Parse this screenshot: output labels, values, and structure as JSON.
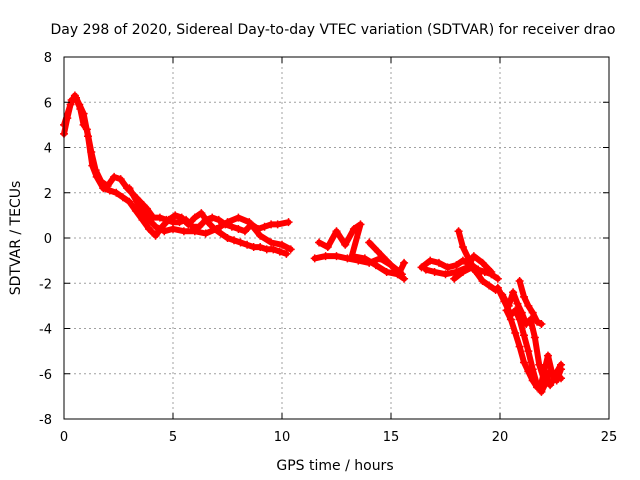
{
  "chart_data": {
    "type": "scatter",
    "title": "Day 298 of 2020, Sidereal Day-to-day VTEC variation (SDTVAR) for receiver drao",
    "xlabel": "GPS time / hours",
    "ylabel": "SDTVAR / TECUs",
    "xlim": [
      0,
      25
    ],
    "ylim": [
      -8,
      8
    ],
    "xticks": [
      0,
      5,
      10,
      15,
      20,
      25
    ],
    "yticks": [
      -8,
      -6,
      -4,
      -2,
      0,
      2,
      4,
      6,
      8
    ],
    "grid": true,
    "marker": "+",
    "series": [
      {
        "name": "SDTVAR",
        "color": "#ff0000",
        "segments": [
          [
            [
              0.0,
              4.6
            ],
            [
              0.15,
              5.3
            ],
            [
              0.35,
              6.1
            ],
            [
              0.55,
              6.2
            ],
            [
              0.75,
              5.7
            ],
            [
              0.9,
              5.0
            ],
            [
              1.05,
              4.8
            ],
            [
              1.25,
              3.8
            ],
            [
              1.45,
              3.0
            ],
            [
              1.7,
              2.5
            ],
            [
              2.0,
              2.3
            ],
            [
              2.3,
              2.7
            ],
            [
              2.6,
              2.6
            ],
            [
              2.9,
              2.2
            ],
            [
              3.2,
              1.9
            ],
            [
              3.5,
              1.6
            ],
            [
              3.8,
              1.3
            ],
            [
              4.1,
              0.9
            ],
            [
              4.4,
              0.9
            ],
            [
              4.7,
              0.8
            ],
            [
              5.0,
              0.7
            ],
            [
              5.3,
              0.7
            ],
            [
              5.6,
              0.8
            ],
            [
              5.9,
              0.5
            ],
            [
              6.2,
              0.5
            ],
            [
              6.5,
              0.8
            ],
            [
              6.8,
              0.9
            ],
            [
              7.1,
              0.8
            ],
            [
              7.4,
              0.6
            ],
            [
              7.7,
              0.5
            ],
            [
              8.0,
              0.4
            ],
            [
              8.3,
              0.3
            ],
            [
              8.6,
              0.6
            ],
            [
              8.9,
              0.4
            ],
            [
              9.2,
              0.5
            ],
            [
              9.5,
              0.6
            ],
            [
              9.8,
              0.6
            ],
            [
              10.3,
              0.7
            ]
          ],
          [
            [
              0.0,
              5.0
            ],
            [
              0.3,
              5.9
            ],
            [
              0.5,
              6.3
            ],
            [
              0.7,
              5.9
            ],
            [
              0.9,
              5.5
            ],
            [
              1.1,
              4.5
            ],
            [
              1.3,
              3.2
            ],
            [
              1.5,
              2.7
            ],
            [
              1.8,
              2.2
            ],
            [
              2.1,
              2.1
            ],
            [
              2.4,
              2.0
            ],
            [
              2.7,
              1.8
            ],
            [
              3.0,
              1.6
            ],
            [
              3.3,
              1.2
            ],
            [
              3.6,
              0.8
            ],
            [
              3.9,
              0.4
            ],
            [
              4.2,
              0.1
            ],
            [
              4.5,
              0.5
            ],
            [
              4.8,
              0.8
            ],
            [
              5.1,
              1.0
            ],
            [
              5.4,
              0.9
            ],
            [
              5.7,
              0.6
            ],
            [
              6.0,
              0.9
            ],
            [
              6.3,
              1.1
            ],
            [
              6.6,
              0.7
            ],
            [
              6.9,
              0.4
            ],
            [
              7.2,
              0.2
            ],
            [
              7.5,
              0.0
            ],
            [
              7.8,
              -0.1
            ],
            [
              8.1,
              -0.2
            ],
            [
              8.4,
              -0.3
            ],
            [
              8.7,
              -0.4
            ],
            [
              9.0,
              -0.4
            ],
            [
              9.3,
              -0.5
            ],
            [
              9.6,
              -0.5
            ],
            [
              9.9,
              -0.6
            ],
            [
              10.2,
              -0.7
            ]
          ],
          [
            [
              3.0,
              2.2
            ],
            [
              3.4,
              1.5
            ],
            [
              3.8,
              0.9
            ],
            [
              4.2,
              0.5
            ],
            [
              4.6,
              0.3
            ],
            [
              5.0,
              0.4
            ],
            [
              5.5,
              0.3
            ],
            [
              6.0,
              0.3
            ],
            [
              6.5,
              0.2
            ],
            [
              7.0,
              0.4
            ],
            [
              7.5,
              0.7
            ],
            [
              8.0,
              0.9
            ],
            [
              8.5,
              0.7
            ],
            [
              9.0,
              0.1
            ],
            [
              9.5,
              -0.2
            ],
            [
              10.0,
              -0.3
            ],
            [
              10.4,
              -0.5
            ]
          ],
          [
            [
              11.7,
              -0.2
            ],
            [
              12.1,
              -0.4
            ],
            [
              12.5,
              0.3
            ],
            [
              12.9,
              -0.3
            ],
            [
              13.3,
              0.4
            ],
            [
              13.6,
              0.6
            ],
            [
              13.2,
              -0.8
            ],
            [
              13.8,
              -0.9
            ],
            [
              14.3,
              -1.2
            ],
            [
              14.8,
              -1.5
            ],
            [
              15.3,
              -1.6
            ],
            [
              15.6,
              -1.8
            ]
          ],
          [
            [
              11.5,
              -0.9
            ],
            [
              12.0,
              -0.8
            ],
            [
              12.5,
              -0.8
            ],
            [
              13.0,
              -0.9
            ],
            [
              13.5,
              -1.0
            ],
            [
              14.0,
              -1.1
            ],
            [
              14.5,
              -0.9
            ],
            [
              15.0,
              -1.2
            ],
            [
              15.4,
              -1.5
            ],
            [
              15.6,
              -1.1
            ]
          ],
          [
            [
              14.0,
              -0.2
            ],
            [
              14.4,
              -0.6
            ],
            [
              14.8,
              -1.0
            ],
            [
              15.2,
              -1.4
            ],
            [
              15.5,
              -1.6
            ]
          ],
          [
            [
              16.4,
              -1.3
            ],
            [
              16.8,
              -1.0
            ],
            [
              17.2,
              -1.1
            ],
            [
              17.6,
              -1.3
            ],
            [
              18.0,
              -1.2
            ],
            [
              18.3,
              -1.0
            ],
            [
              18.7,
              -1.2
            ],
            [
              19.0,
              -1.4
            ],
            [
              19.3,
              -1.5
            ],
            [
              19.6,
              -1.6
            ],
            [
              19.9,
              -1.8
            ]
          ],
          [
            [
              16.6,
              -1.4
            ],
            [
              17.0,
              -1.5
            ],
            [
              17.5,
              -1.6
            ],
            [
              18.0,
              -1.5
            ],
            [
              18.5,
              -1.3
            ],
            [
              18.8,
              -0.8
            ],
            [
              19.2,
              -1.1
            ],
            [
              19.6,
              -1.5
            ]
          ],
          [
            [
              18.1,
              0.3
            ],
            [
              18.3,
              -0.4
            ],
            [
              18.6,
              -1.0
            ],
            [
              18.9,
              -1.5
            ],
            [
              19.2,
              -1.9
            ],
            [
              19.5,
              -2.1
            ],
            [
              19.8,
              -2.3
            ]
          ],
          [
            [
              17.9,
              -1.8
            ],
            [
              18.3,
              -1.5
            ],
            [
              18.7,
              -1.3
            ],
            [
              19.0,
              -1.6
            ]
          ],
          [
            [
              19.9,
              -2.2
            ],
            [
              20.2,
              -2.8
            ],
            [
              20.5,
              -3.4
            ],
            [
              20.7,
              -3.2
            ],
            [
              20.9,
              -3.6
            ],
            [
              21.1,
              -4.3
            ],
            [
              21.3,
              -5.0
            ],
            [
              21.5,
              -5.8
            ],
            [
              21.7,
              -6.5
            ],
            [
              21.9,
              -6.8
            ],
            [
              22.1,
              -6.4
            ],
            [
              22.3,
              -5.9
            ],
            [
              22.5,
              -6.1
            ],
            [
              22.8,
              -5.6
            ]
          ],
          [
            [
              20.1,
              -2.5
            ],
            [
              20.4,
              -3.0
            ],
            [
              20.6,
              -2.4
            ],
            [
              20.8,
              -2.9
            ],
            [
              21.0,
              -3.3
            ],
            [
              21.2,
              -3.8
            ],
            [
              21.4,
              -3.6
            ],
            [
              21.6,
              -4.4
            ],
            [
              21.8,
              -5.6
            ],
            [
              22.0,
              -6.2
            ],
            [
              22.3,
              -6.5
            ],
            [
              22.6,
              -6.0
            ],
            [
              22.8,
              -6.2
            ]
          ],
          [
            [
              20.3,
              -3.2
            ],
            [
              20.5,
              -3.6
            ],
            [
              20.7,
              -4.2
            ],
            [
              20.9,
              -4.8
            ],
            [
              21.1,
              -5.5
            ],
            [
              21.3,
              -5.9
            ],
            [
              21.5,
              -6.3
            ],
            [
              21.7,
              -6.6
            ],
            [
              21.9,
              -6.4
            ],
            [
              22.2,
              -5.2
            ],
            [
              22.4,
              -6.0
            ],
            [
              22.6,
              -6.3
            ],
            [
              22.8,
              -5.8
            ]
          ],
          [
            [
              20.9,
              -1.9
            ],
            [
              21.1,
              -2.6
            ],
            [
              21.3,
              -3.0
            ],
            [
              21.5,
              -3.3
            ],
            [
              21.7,
              -3.7
            ],
            [
              21.9,
              -3.8
            ]
          ]
        ]
      }
    ]
  }
}
